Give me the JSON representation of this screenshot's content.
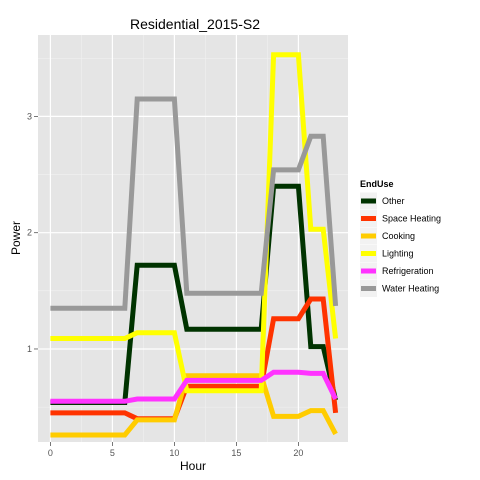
{
  "chart_data": {
    "type": "line",
    "title": "Residential_2015-S2",
    "xlabel": "Hour",
    "ylabel": "Power",
    "xlim": [
      -1,
      24
    ],
    "ylim": [
      0.2,
      3.7
    ],
    "xticks": [
      0,
      5,
      10,
      15,
      20
    ],
    "yticks": [
      1,
      2,
      3
    ],
    "grid": true,
    "background": "#e5e5e5",
    "legend": {
      "title": "EndUse",
      "position": "right"
    },
    "x": [
      0,
      1,
      2,
      3,
      4,
      5,
      6,
      7,
      8,
      9,
      10,
      11,
      12,
      13,
      14,
      15,
      16,
      17,
      18,
      19,
      20,
      21,
      22,
      23
    ],
    "series": [
      {
        "name": "Other",
        "color": "#003300",
        "values": [
          0.54,
          0.54,
          0.54,
          0.54,
          0.54,
          0.54,
          0.54,
          1.72,
          1.72,
          1.72,
          1.72,
          1.17,
          1.17,
          1.17,
          1.17,
          1.17,
          1.17,
          1.17,
          2.4,
          2.4,
          2.4,
          1.02,
          1.02,
          0.56
        ]
      },
      {
        "name": "Space Heating",
        "color": "#ff3300",
        "values": [
          0.45,
          0.45,
          0.45,
          0.45,
          0.45,
          0.45,
          0.45,
          0.4,
          0.4,
          0.4,
          0.4,
          0.68,
          0.68,
          0.68,
          0.68,
          0.68,
          0.68,
          0.68,
          1.26,
          1.26,
          1.26,
          1.43,
          1.43,
          0.45
        ]
      },
      {
        "name": "Cooking",
        "color": "#ffcc00",
        "values": [
          0.26,
          0.26,
          0.26,
          0.26,
          0.26,
          0.26,
          0.26,
          0.39,
          0.39,
          0.39,
          0.39,
          0.77,
          0.77,
          0.77,
          0.77,
          0.77,
          0.77,
          0.77,
          0.42,
          0.42,
          0.42,
          0.47,
          0.47,
          0.27
        ]
      },
      {
        "name": "Lighting",
        "color": "#ffff00",
        "values": [
          1.09,
          1.09,
          1.09,
          1.09,
          1.09,
          1.09,
          1.09,
          1.14,
          1.14,
          1.14,
          1.14,
          0.64,
          0.64,
          0.64,
          0.64,
          0.64,
          0.64,
          0.64,
          3.53,
          3.53,
          3.53,
          2.03,
          2.03,
          1.09
        ]
      },
      {
        "name": "Refrigeration",
        "color": "#ff33ff",
        "values": [
          0.55,
          0.55,
          0.55,
          0.55,
          0.55,
          0.55,
          0.55,
          0.57,
          0.57,
          0.57,
          0.57,
          0.73,
          0.73,
          0.73,
          0.73,
          0.73,
          0.73,
          0.73,
          0.8,
          0.8,
          0.8,
          0.79,
          0.79,
          0.57
        ]
      },
      {
        "name": "Water Heating",
        "color": "#999999",
        "values": [
          1.35,
          1.35,
          1.35,
          1.35,
          1.35,
          1.35,
          1.35,
          3.15,
          3.15,
          3.15,
          3.15,
          1.48,
          1.48,
          1.48,
          1.48,
          1.48,
          1.48,
          1.48,
          2.54,
          2.54,
          2.54,
          2.83,
          2.83,
          1.37
        ]
      }
    ]
  }
}
